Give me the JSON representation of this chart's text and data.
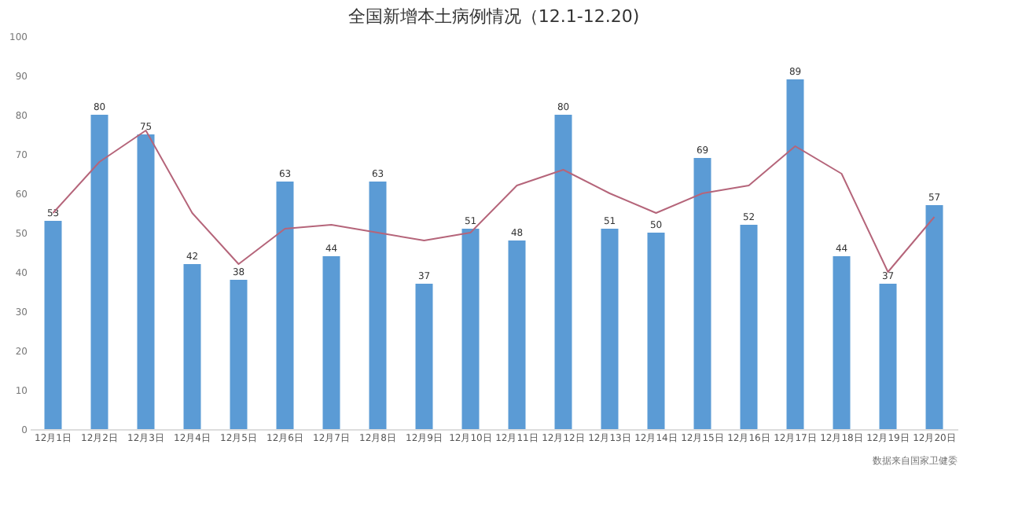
{
  "chart_data": {
    "type": "bar",
    "title": "全国新增本土病例情况（12.1-12.20)",
    "categories": [
      "12月1日",
      "12月2日",
      "12月3日",
      "12月4日",
      "12月5日",
      "12月6日",
      "12月7日",
      "12月8日",
      "12月9日",
      "12月10日",
      "12月11日",
      "12月12日",
      "12月13日",
      "12月14日",
      "12月15日",
      "12月16日",
      "12月17日",
      "12月18日",
      "12月19日",
      "12月20日"
    ],
    "series": [
      {
        "color": "#5b9bd5",
        "values": [
          53,
          80,
          75,
          42,
          38,
          63,
          44,
          63,
          37,
          51,
          48,
          80,
          51,
          50,
          69,
          52,
          89,
          44,
          37,
          57
        ],
        "value_labels": [
          "53",
          "80",
          "75",
          "42",
          "38",
          "63",
          "44",
          "63",
          "37",
          "51",
          "48",
          "80",
          "51",
          "50",
          "69",
          "52",
          "89",
          "44",
          "37",
          "57"
        ]
      },
      {
        "type": "line",
        "color": "#b5657a",
        "values": [
          55,
          68,
          76,
          55,
          42,
          51,
          52,
          50,
          48,
          50,
          62,
          66,
          60,
          55,
          60,
          62,
          72,
          65,
          40,
          54
        ]
      }
    ],
    "ylim": [
      0,
      100
    ],
    "yticks": [
      0,
      10,
      20,
      30,
      40,
      50,
      60,
      70,
      80,
      90,
      100
    ],
    "grid": false,
    "annotations": [
      "数据来自国家卫健委"
    ]
  }
}
